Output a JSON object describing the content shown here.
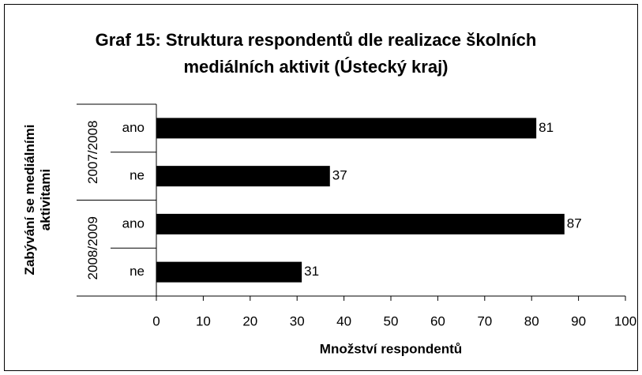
{
  "chart_data": {
    "type": "bar",
    "orientation": "horizontal",
    "title": "Graf 15: Struktura respondentů dle realizace školních mediálních aktivit (Ústecký kraj)",
    "ylabel": "Zabývání se mediálními aktivitami",
    "xlabel": "Množství respondentů",
    "color": "#000000",
    "groups": [
      {
        "label": "2007/2008",
        "categories": [
          "ano",
          "ne"
        ],
        "values": [
          81,
          37
        ]
      },
      {
        "label": "2008/2009",
        "categories": [
          "ano",
          "ne"
        ],
        "values": [
          87,
          31
        ]
      }
    ],
    "xlim": [
      0,
      100
    ],
    "xticks": [
      0,
      10,
      20,
      30,
      40,
      50,
      60,
      70,
      80,
      90,
      100
    ],
    "grid": false
  }
}
